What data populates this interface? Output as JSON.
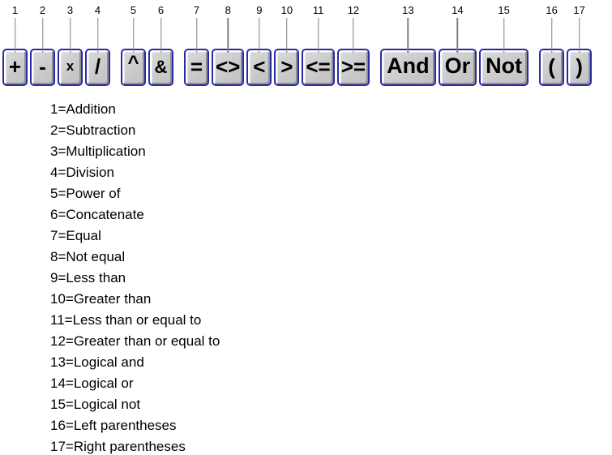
{
  "toolbar": {
    "groups": [
      {
        "name": "arithmetic",
        "buttons": [
          {
            "num": "1",
            "glyph": "+",
            "name": "addition"
          },
          {
            "num": "2",
            "glyph": "-",
            "name": "subtraction"
          },
          {
            "num": "3",
            "glyph": "x",
            "name": "multiplication"
          },
          {
            "num": "4",
            "glyph": "/",
            "name": "division"
          }
        ]
      },
      {
        "name": "power-concatenate",
        "buttons": [
          {
            "num": "5",
            "glyph": "^",
            "name": "power-of"
          },
          {
            "num": "6",
            "glyph": "&",
            "name": "concatenate"
          }
        ]
      },
      {
        "name": "comparison",
        "buttons": [
          {
            "num": "7",
            "glyph": "=",
            "name": "equal"
          },
          {
            "num": "8",
            "glyph": "<>",
            "name": "not-equal"
          },
          {
            "num": "9",
            "glyph": "<",
            "name": "less-than"
          },
          {
            "num": "10",
            "glyph": ">",
            "name": "greater-than"
          },
          {
            "num": "11",
            "glyph": "<=",
            "name": "less-than-or-equal"
          },
          {
            "num": "12",
            "glyph": ">=",
            "name": "greater-than-or-equal"
          }
        ]
      },
      {
        "name": "logical",
        "buttons": [
          {
            "num": "13",
            "glyph": "And",
            "name": "logical-and"
          },
          {
            "num": "14",
            "glyph": "Or",
            "name": "logical-or"
          },
          {
            "num": "15",
            "glyph": "Not",
            "name": "logical-not"
          }
        ]
      },
      {
        "name": "parentheses",
        "buttons": [
          {
            "num": "16",
            "glyph": "(",
            "name": "left-parentheses"
          },
          {
            "num": "17",
            "glyph": ")",
            "name": "right-parentheses"
          }
        ]
      }
    ]
  },
  "legend": {
    "lines": [
      "1=Addition",
      "2=Subtraction",
      "3=Multiplication",
      "4=Division",
      "5=Power of",
      "6=Concatenate",
      "7=Equal",
      "8=Not equal",
      "9=Less than",
      "10=Greater than",
      "11=Less than or equal to",
      "12=Greater than or equal to",
      "13=Logical and",
      "14=Logical or",
      "15=Logical not",
      "16=Left parentheses",
      "17=Right parentheses"
    ]
  },
  "colors": {
    "button_border": "#2a2aa4",
    "button_face": "#c9c9c9",
    "button_highlight": "#ffffff",
    "button_shadow": "#8f8f8f",
    "callout_line": "#808080",
    "text": "#000000",
    "background": "#ffffff"
  }
}
